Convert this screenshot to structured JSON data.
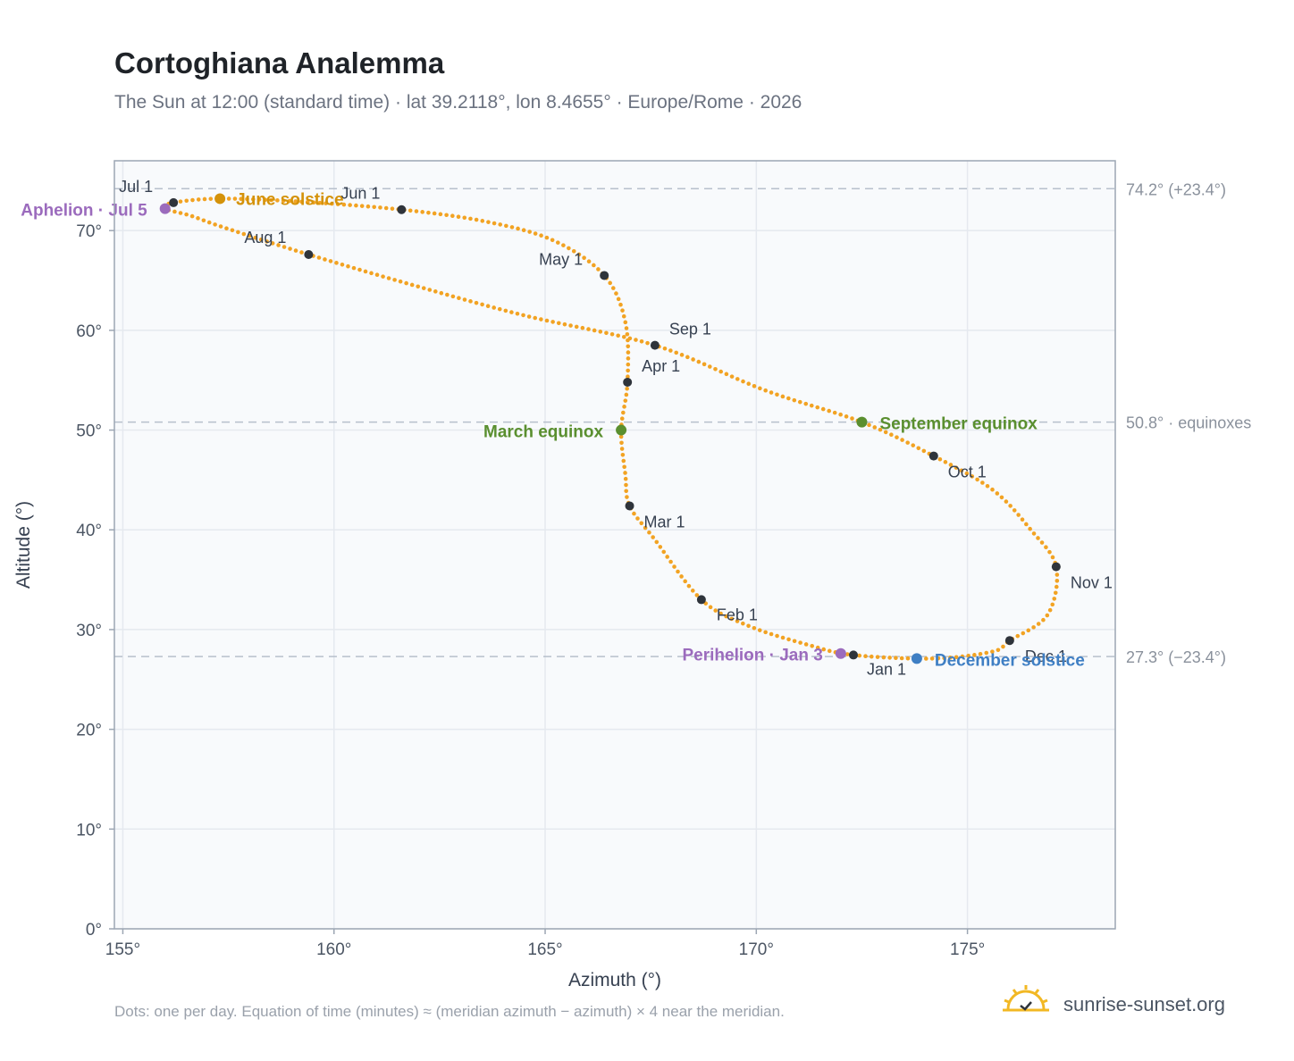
{
  "title": "Cortoghiana Analemma",
  "subtitle": "The Sun at 12:00 (standard time) · lat 39.2118°, lon 8.4655° · Europe/Rome · 2026",
  "footnote": "Dots: one per day. Equation of time (minutes) ≈ (meridian azimuth − azimuth) × 4 near the meridian.",
  "brand": {
    "text": "sunrise-sunset.org",
    "icon": "sun-check-icon"
  },
  "colors": {
    "curve": "#f2a323",
    "month_marker": "#2f343b",
    "june_solstice": "#d4920a",
    "december_solstice": "#3f7fc4",
    "equinox": "#5a8f2f",
    "aphelion_perihelion": "#9b6bbd",
    "reference_line": "#b7c0cc",
    "plot_bg": "#f8fafc",
    "grid": "#e5e9ef",
    "frame": "#9ca6b3"
  },
  "chart_data": {
    "type": "scatter",
    "xlabel": "Azimuth (°)",
    "ylabel": "Altitude (°)",
    "xlim": [
      154.8,
      178.5
    ],
    "ylim": [
      0,
      77
    ],
    "x_ticks": [
      155,
      160,
      165,
      170,
      175
    ],
    "x_tick_labels": [
      "155°",
      "160°",
      "165°",
      "170°",
      "175°"
    ],
    "y_ticks": [
      0,
      10,
      20,
      30,
      40,
      50,
      60,
      70
    ],
    "y_tick_labels": [
      "0°",
      "10°",
      "20°",
      "30°",
      "40°",
      "50°",
      "60°",
      "70°"
    ],
    "grid": true,
    "path_anchors": [
      [
        172.3,
        27.45
      ],
      [
        174.2,
        27.1
      ],
      [
        175.6,
        27.8
      ],
      [
        176.0,
        28.9
      ],
      [
        176.9,
        31.5
      ],
      [
        177.1,
        36.3
      ],
      [
        176.5,
        40.0
      ],
      [
        175.6,
        44.0
      ],
      [
        174.2,
        47.4
      ],
      [
        172.5,
        50.8
      ],
      [
        170.2,
        54.0
      ],
      [
        167.6,
        58.5
      ],
      [
        164.5,
        61.5
      ],
      [
        161.9,
        64.5
      ],
      [
        159.4,
        67.6
      ],
      [
        157.4,
        70.3
      ],
      [
        156.6,
        71.5
      ],
      [
        156.0,
        72.2
      ],
      [
        156.2,
        72.8
      ],
      [
        157.3,
        73.2
      ],
      [
        159.2,
        72.9
      ],
      [
        161.6,
        72.1
      ],
      [
        163.6,
        70.9
      ],
      [
        165.2,
        69.0
      ],
      [
        166.4,
        65.5
      ],
      [
        166.9,
        60.8
      ],
      [
        166.95,
        54.8
      ],
      [
        166.8,
        50.0
      ],
      [
        166.9,
        45.5
      ],
      [
        167.0,
        42.4
      ],
      [
        167.6,
        39.0
      ],
      [
        168.7,
        33.0
      ],
      [
        169.8,
        30.4
      ],
      [
        171.2,
        28.5
      ],
      [
        172.3,
        27.45
      ]
    ],
    "daily_points": 365,
    "month_markers": [
      {
        "label": "Jan 1",
        "az": 172.3,
        "alt": 27.45,
        "dx": 15,
        "dy": 22
      },
      {
        "label": "Feb 1",
        "az": 168.7,
        "alt": 33.0,
        "dx": 17,
        "dy": 23
      },
      {
        "label": "Mar 1",
        "az": 167.0,
        "alt": 42.4,
        "dx": 16,
        "dy": 24
      },
      {
        "label": "Apr 1",
        "az": 166.95,
        "alt": 54.8,
        "dx": 16,
        "dy": -12
      },
      {
        "label": "May 1",
        "az": 166.4,
        "alt": 65.5,
        "dx": -73,
        "dy": -12
      },
      {
        "label": "Jun 1",
        "az": 161.6,
        "alt": 72.1,
        "dx": -68,
        "dy": -12
      },
      {
        "label": "Jul 1",
        "az": 156.2,
        "alt": 72.8,
        "dx": -61,
        "dy": -12
      },
      {
        "label": "Aug 1",
        "az": 159.4,
        "alt": 67.6,
        "dx": -72,
        "dy": -13
      },
      {
        "label": "Sep 1",
        "az": 167.6,
        "alt": 58.5,
        "dx": 16,
        "dy": -12
      },
      {
        "label": "Oct 1",
        "az": 174.2,
        "alt": 47.4,
        "dx": 16,
        "dy": 24
      },
      {
        "label": "Nov 1",
        "az": 177.1,
        "alt": 36.3,
        "dx": 16,
        "dy": 24
      },
      {
        "label": "Dec 1",
        "az": 176.0,
        "alt": 28.9,
        "dx": 17,
        "dy": 24
      }
    ],
    "events": [
      {
        "label": "June solstice",
        "az": 157.3,
        "alt": 73.2,
        "color": "#d4920a",
        "anchor": "start",
        "dx": 18,
        "dy": 7
      },
      {
        "label": "December solstice",
        "az": 173.8,
        "alt": 27.1,
        "color": "#3f7fc4",
        "anchor": "start",
        "dx": 20,
        "dy": 8
      },
      {
        "label": "March equinox",
        "az": 166.8,
        "alt": 50.0,
        "color": "#5a8f2f",
        "anchor": "end",
        "dx": -20,
        "dy": 8
      },
      {
        "label": "September equinox",
        "az": 172.5,
        "alt": 50.8,
        "color": "#5a8f2f",
        "anchor": "start",
        "dx": 20,
        "dy": 8
      },
      {
        "label": "Aphelion · Jul 5",
        "az": 156.0,
        "alt": 72.2,
        "color": "#9b6bbd",
        "anchor": "end",
        "dx": -20,
        "dy": 8
      },
      {
        "label": "Perihelion · Jan 3",
        "az": 172.0,
        "alt": 27.6,
        "color": "#9b6bbd",
        "anchor": "end",
        "dx": -20,
        "dy": 8
      }
    ],
    "reference_lines": [
      {
        "alt": 74.2,
        "label": "74.2° (+23.4°)"
      },
      {
        "alt": 50.8,
        "label": "50.8° · equinoxes"
      },
      {
        "alt": 27.3,
        "label": "27.3° (−23.4°)"
      }
    ]
  }
}
